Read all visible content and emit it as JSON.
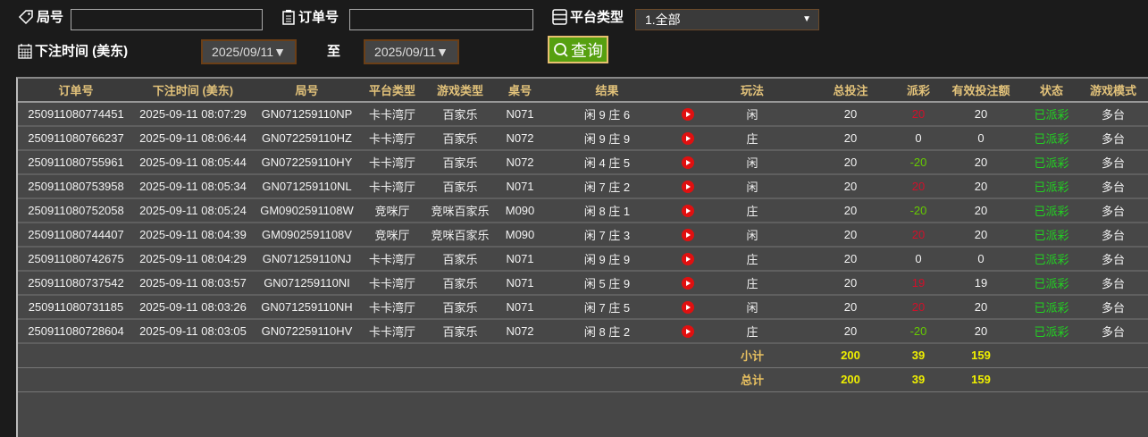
{
  "filters": {
    "round_label": "局号",
    "round_value": "",
    "order_label": "订单号",
    "order_value": "",
    "platform_label": "平台类型",
    "platform_value": "1.全部",
    "time_label": "下注时间 (美东)",
    "date_from": "2025/09/11",
    "to_label": "至",
    "date_to": "2025/09/11",
    "query_label": "查询"
  },
  "table": {
    "headers": [
      "订单号",
      "下注时间 (美东)",
      "局号",
      "平台类型",
      "游戏类型",
      "桌号",
      "结果",
      "",
      "玩法",
      "总投注",
      "派彩",
      "有效投注额",
      "状态",
      "游戏模式"
    ],
    "rows": [
      [
        "250911080774451",
        "2025-09-11 08:07:29",
        "GN071259110NP",
        "卡卡湾厅",
        "百家乐",
        "N071",
        "闲 9 庄 6",
        "闲",
        "20",
        "20",
        "20",
        "已派彩",
        "多台",
        "red"
      ],
      [
        "250911080766237",
        "2025-09-11 08:06:44",
        "GN072259110HZ",
        "卡卡湾厅",
        "百家乐",
        "N072",
        "闲 9 庄 9",
        "庄",
        "20",
        "0",
        "0",
        "已派彩",
        "多台",
        ""
      ],
      [
        "250911080755961",
        "2025-09-11 08:05:44",
        "GN072259110HY",
        "卡卡湾厅",
        "百家乐",
        "N072",
        "闲 4 庄 5",
        "闲",
        "20",
        "-20",
        "20",
        "已派彩",
        "多台",
        "grn"
      ],
      [
        "250911080753958",
        "2025-09-11 08:05:34",
        "GN071259110NL",
        "卡卡湾厅",
        "百家乐",
        "N071",
        "闲 7 庄 2",
        "闲",
        "20",
        "20",
        "20",
        "已派彩",
        "多台",
        "red"
      ],
      [
        "250911080752058",
        "2025-09-11 08:05:24",
        "GM0902591108W",
        "竞咪厅",
        "竞咪百家乐",
        "M090",
        "闲 8 庄 1",
        "庄",
        "20",
        "-20",
        "20",
        "已派彩",
        "多台",
        "grn"
      ],
      [
        "250911080744407",
        "2025-09-11 08:04:39",
        "GM0902591108V",
        "竞咪厅",
        "竞咪百家乐",
        "M090",
        "闲 7 庄 3",
        "闲",
        "20",
        "20",
        "20",
        "已派彩",
        "多台",
        "red"
      ],
      [
        "250911080742675",
        "2025-09-11 08:04:29",
        "GN071259110NJ",
        "卡卡湾厅",
        "百家乐",
        "N071",
        "闲 9 庄 9",
        "庄",
        "20",
        "0",
        "0",
        "已派彩",
        "多台",
        ""
      ],
      [
        "250911080737542",
        "2025-09-11 08:03:57",
        "GN071259110NI",
        "卡卡湾厅",
        "百家乐",
        "N071",
        "闲 5 庄 9",
        "庄",
        "20",
        "19",
        "19",
        "已派彩",
        "多台",
        "red"
      ],
      [
        "250911080731185",
        "2025-09-11 08:03:26",
        "GN071259110NH",
        "卡卡湾厅",
        "百家乐",
        "N071",
        "闲 7 庄 5",
        "闲",
        "20",
        "20",
        "20",
        "已派彩",
        "多台",
        "red"
      ],
      [
        "250911080728604",
        "2025-09-11 08:03:05",
        "GN072259110HV",
        "卡卡湾厅",
        "百家乐",
        "N072",
        "闲 8 庄 2",
        "庄",
        "20",
        "-20",
        "20",
        "已派彩",
        "多台",
        "grn"
      ]
    ],
    "subtotal": {
      "label": "小计",
      "total_bet": "200",
      "payout": "39",
      "valid_bet": "159"
    },
    "total": {
      "label": "总计",
      "total_bet": "200",
      "payout": "39",
      "valid_bet": "159"
    }
  }
}
